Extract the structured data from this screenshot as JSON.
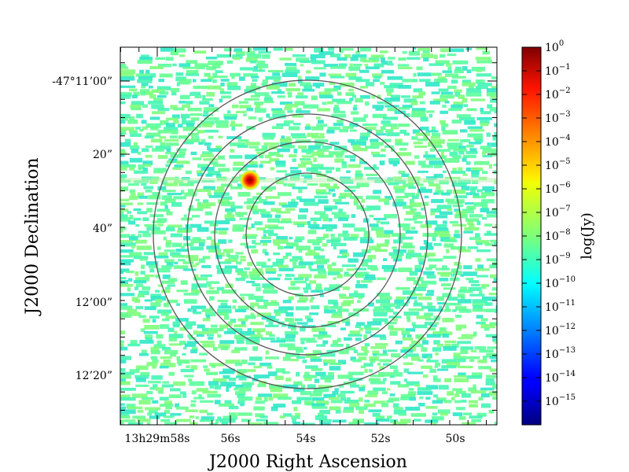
{
  "chart_data": {
    "type": "heatmap",
    "title": "",
    "xlabel": "J2000 Right Ascension",
    "ylabel": "J2000 Declination",
    "x_ticks": [
      "13h29m58s",
      "56s",
      "54s",
      "52s",
      "50s"
    ],
    "y_ticks": [
      "-47°11’00”",
      "20”",
      "40”",
      "12’00”",
      "12’20”"
    ],
    "colorbar": {
      "label": "log(Jy)",
      "tick_exponents": [
        0,
        -1,
        -2,
        -3,
        -4,
        -5,
        -6,
        -7,
        -8,
        -9,
        -10,
        -11,
        -12,
        -13,
        -14,
        -15
      ],
      "tick_base": "10",
      "range_exponent": [
        -16,
        0
      ],
      "colormap": "jet"
    },
    "background_level_exponent": -9,
    "sources": [
      {
        "ra": "13h29m55.8s",
        "dec": "-47°11’29”",
        "peak_exponent": 0
      }
    ],
    "contour_rings": 4,
    "grid": false,
    "legend": "none"
  }
}
